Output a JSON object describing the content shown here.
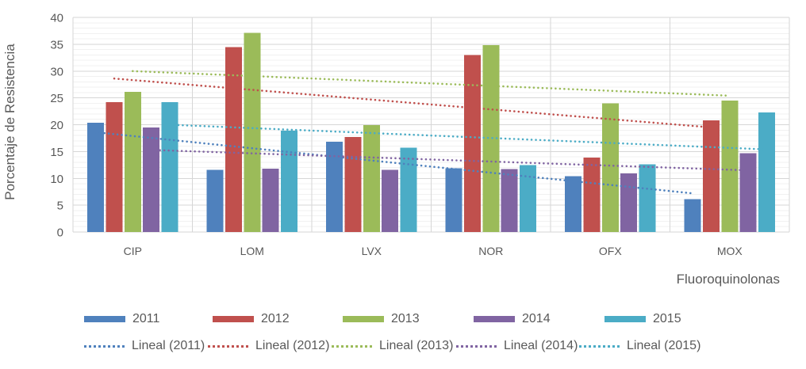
{
  "chart_data": {
    "type": "bar",
    "title": "",
    "xlabel": "Fluoroquinolonas",
    "ylabel": "Porcentaje de Resistencia",
    "categories": [
      "CIP",
      "LOM",
      "LVX",
      "NOR",
      "OFX",
      "MOX"
    ],
    "series": [
      {
        "name": "2011",
        "color": "#4F81BD",
        "values": [
          20.4,
          11.6,
          16.8,
          11.9,
          10.4,
          6.1
        ]
      },
      {
        "name": "2012",
        "color": "#C0504D",
        "values": [
          24.2,
          34.5,
          17.7,
          33.0,
          13.9,
          20.8
        ]
      },
      {
        "name": "2013",
        "color": "#9BBB59",
        "values": [
          26.1,
          37.1,
          19.9,
          34.8,
          24.0,
          24.5
        ]
      },
      {
        "name": "2014",
        "color": "#8064A2",
        "values": [
          19.5,
          11.8,
          11.6,
          11.7,
          10.9,
          14.7
        ]
      },
      {
        "name": "2015",
        "color": "#4BACC6",
        "values": [
          24.2,
          18.9,
          15.7,
          12.5,
          12.6,
          22.3
        ]
      }
    ],
    "trendlines": [
      {
        "name": "Lineal (2011)",
        "color": "#4F81BD",
        "start": 18.6,
        "end": 7.2
      },
      {
        "name": "Lineal (2012)",
        "color": "#C0504D",
        "start": 28.6,
        "end": 19.5
      },
      {
        "name": "Lineal (2013)",
        "color": "#9BBB59",
        "start": 30.0,
        "end": 25.4
      },
      {
        "name": "Lineal (2014)",
        "color": "#8064A2",
        "start": 15.3,
        "end": 11.5
      },
      {
        "name": "Lineal (2015)",
        "color": "#4BACC6",
        "start": 20.0,
        "end": 15.4
      }
    ],
    "ylim": [
      0,
      40
    ],
    "y_major_ticks": [
      0,
      5,
      10,
      15,
      20,
      25,
      30,
      35,
      40
    ],
    "y_minor_unit": 1,
    "grid": true,
    "legend_position": "bottom"
  },
  "colors": {
    "axis_text": "#595959",
    "major_gridline": "#D6D6D6",
    "minor_gridline": "#F1F1F1",
    "background": "#FFFFFF"
  }
}
